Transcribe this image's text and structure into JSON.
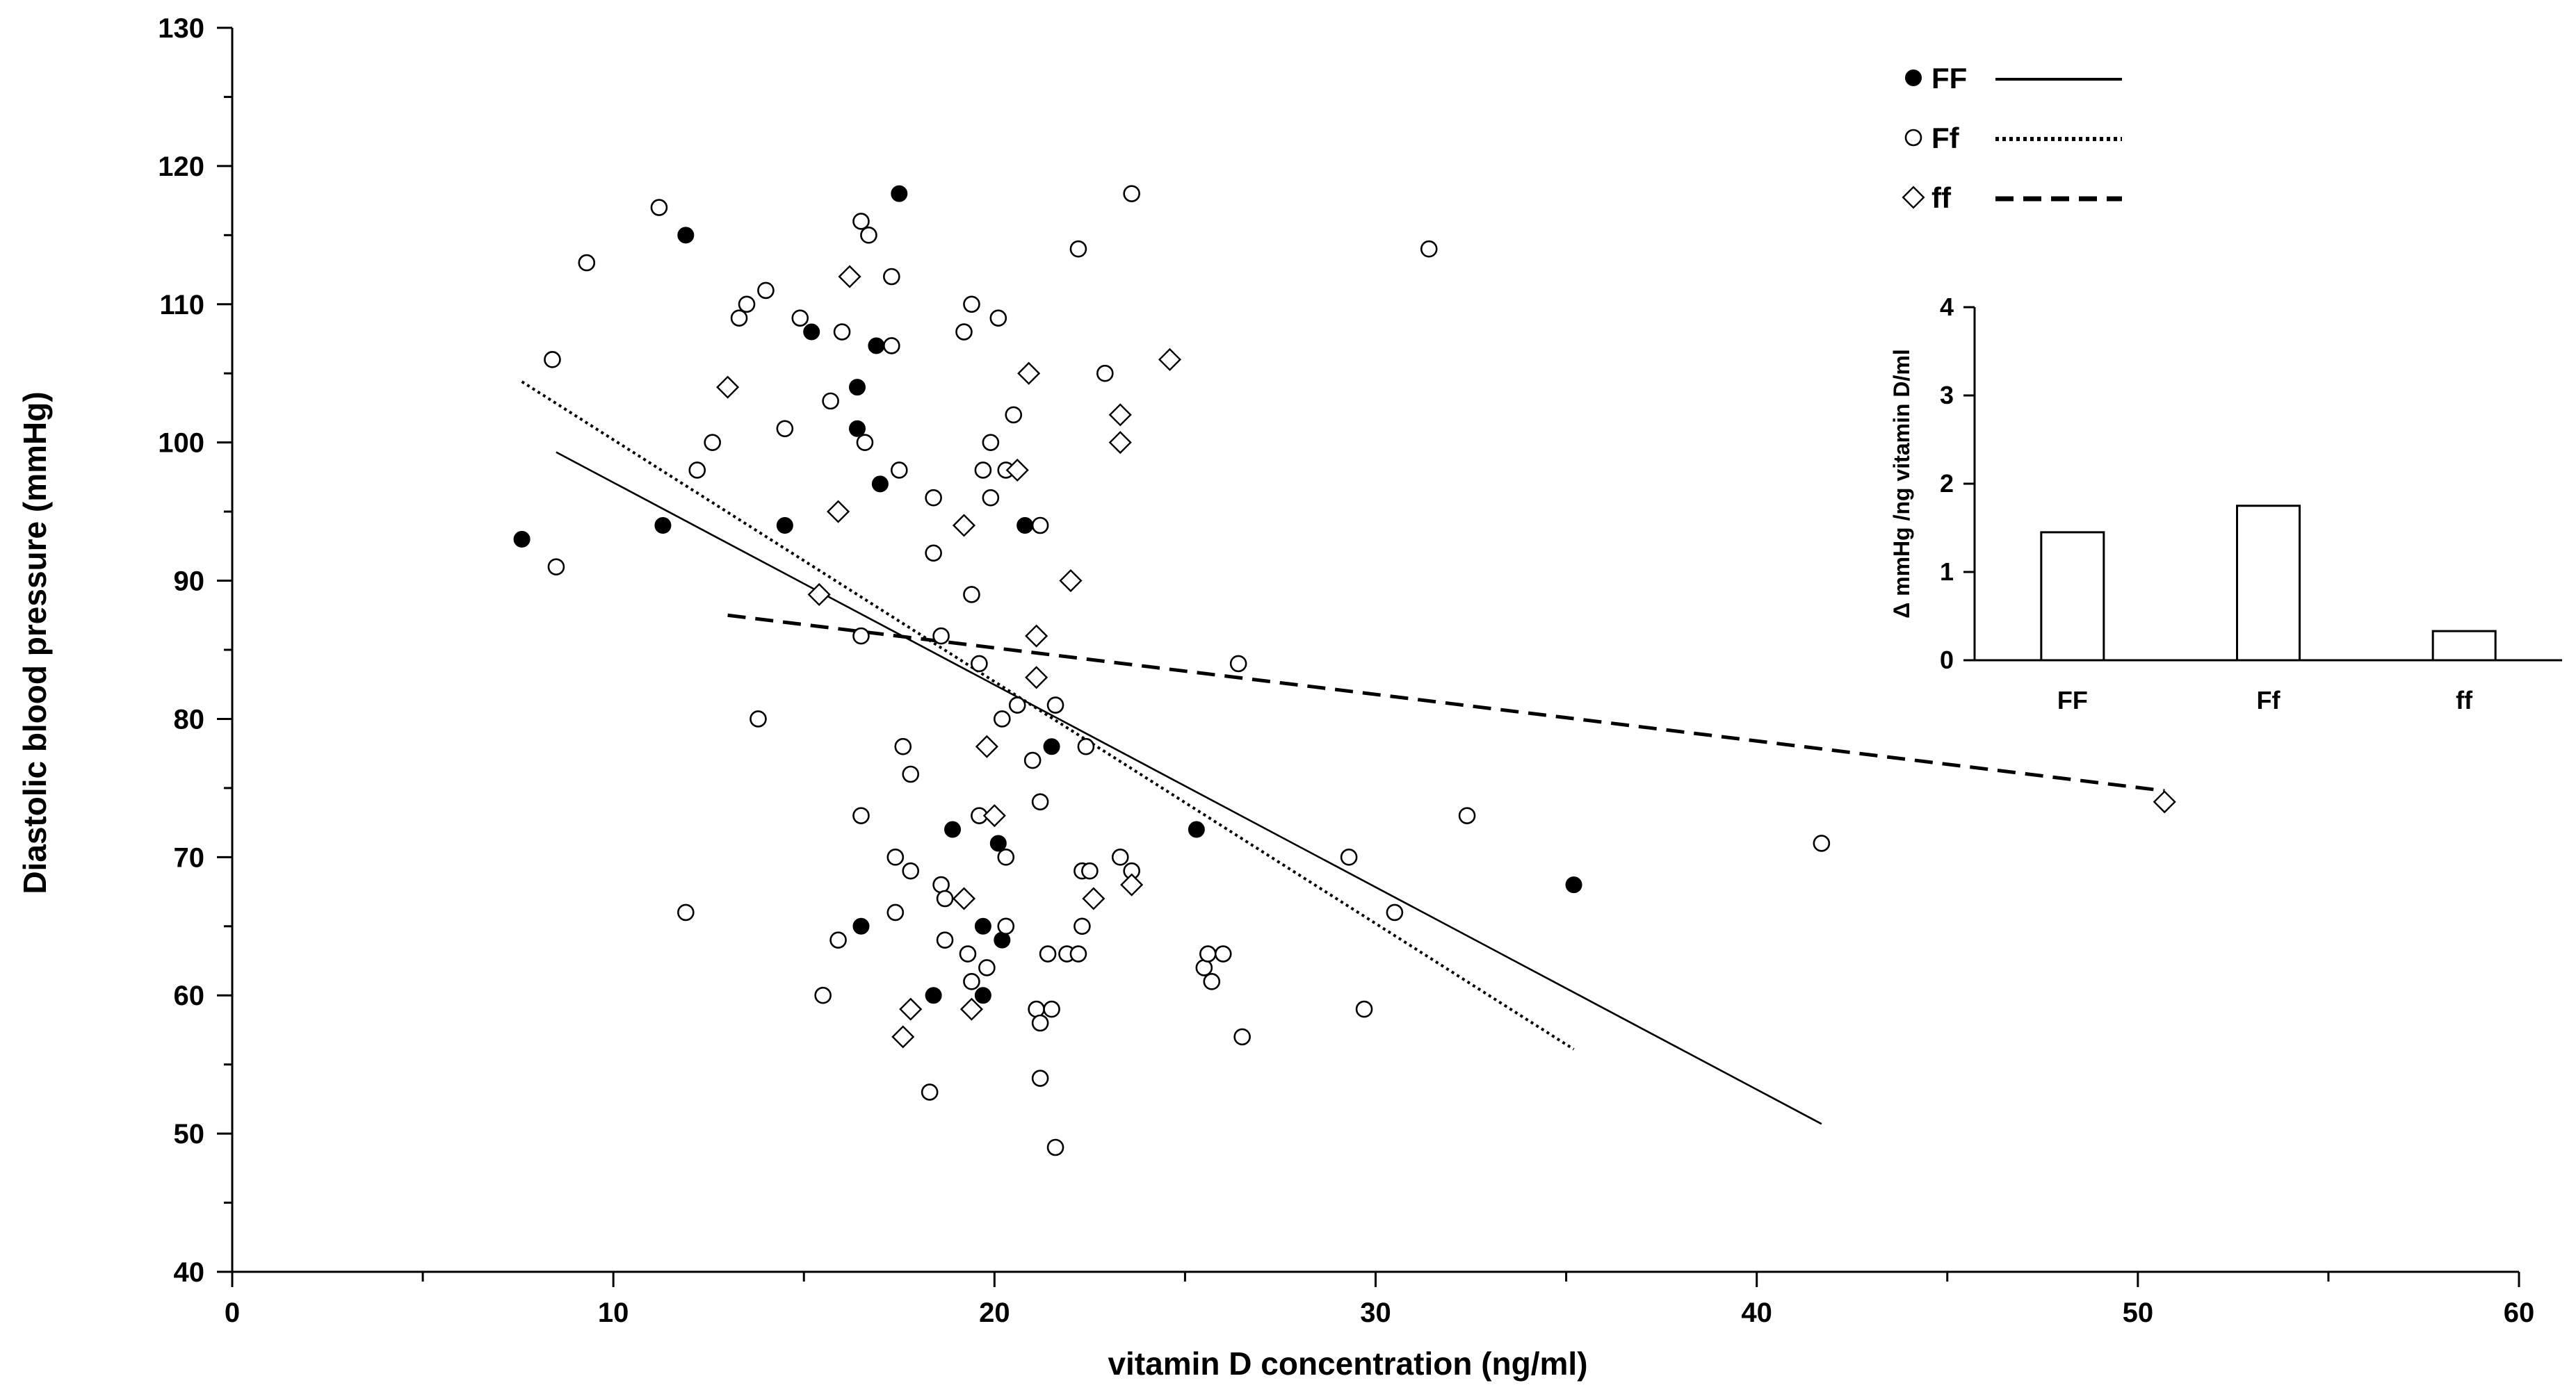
{
  "chart_data": [
    {
      "type": "scatter",
      "title": "",
      "xlabel": "vitamin D concentration  (ng/ml)",
      "ylabel": "Diastolic blood pressure (mmHg)",
      "xlim": [
        0,
        60
      ],
      "ylim": [
        40,
        130
      ],
      "xticks": [
        "0",
        "10",
        "20",
        "30",
        "40",
        "50",
        "60"
      ],
      "yticks": [
        "40",
        "50",
        "60",
        "70",
        "80",
        "90",
        "100",
        "110",
        "120",
        "130"
      ],
      "legend_position": "top-right",
      "series": [
        {
          "name": "FF",
          "marker": "filled-circle",
          "line_style": "solid",
          "points": [
            [
              7.6,
              93
            ],
            [
              11.3,
              94
            ],
            [
              11.9,
              115
            ],
            [
              14.5,
              94
            ],
            [
              15.2,
              108
            ],
            [
              16.4,
              104
            ],
            [
              16.4,
              101
            ],
            [
              16.9,
              107
            ],
            [
              17.0,
              97
            ],
            [
              17.5,
              118
            ],
            [
              16.5,
              65
            ],
            [
              18.4,
              60
            ],
            [
              18.9,
              72
            ],
            [
              19.7,
              65
            ],
            [
              19.7,
              60
            ],
            [
              20.1,
              71
            ],
            [
              20.2,
              64
            ],
            [
              20.8,
              94
            ],
            [
              21.5,
              78
            ],
            [
              25.3,
              72
            ],
            [
              35.2,
              68
            ]
          ],
          "trend": [
            [
              8.5,
              99.3
            ],
            [
              41.7,
              50.7
            ]
          ]
        },
        {
          "name": "Ff",
          "marker": "open-circle",
          "line_style": "dotted",
          "points": [
            [
              8.4,
              106
            ],
            [
              8.5,
              91
            ],
            [
              9.3,
              113
            ],
            [
              11.2,
              117
            ],
            [
              11.9,
              66
            ],
            [
              12.2,
              98
            ],
            [
              12.6,
              100
            ],
            [
              13.3,
              109
            ],
            [
              13.5,
              110
            ],
            [
              13.8,
              80
            ],
            [
              14.0,
              111
            ],
            [
              14.5,
              101
            ],
            [
              14.9,
              109
            ],
            [
              15.5,
              60
            ],
            [
              15.7,
              103
            ],
            [
              15.9,
              64
            ],
            [
              16.0,
              108
            ],
            [
              16.5,
              116
            ],
            [
              16.5,
              86
            ],
            [
              16.5,
              73
            ],
            [
              16.6,
              100
            ],
            [
              16.7,
              115
            ],
            [
              17.3,
              112
            ],
            [
              17.3,
              107
            ],
            [
              17.4,
              70
            ],
            [
              17.5,
              98
            ],
            [
              17.4,
              66
            ],
            [
              17.6,
              78
            ],
            [
              17.8,
              76
            ],
            [
              17.8,
              69
            ],
            [
              18.3,
              53
            ],
            [
              18.4,
              96
            ],
            [
              18.4,
              92
            ],
            [
              18.6,
              86
            ],
            [
              18.6,
              68
            ],
            [
              18.7,
              67
            ],
            [
              18.7,
              64
            ],
            [
              19.2,
              108
            ],
            [
              19.3,
              63
            ],
            [
              19.4,
              110
            ],
            [
              19.4,
              89
            ],
            [
              19.4,
              61
            ],
            [
              19.6,
              84
            ],
            [
              19.6,
              73
            ],
            [
              19.7,
              98
            ],
            [
              19.8,
              62
            ],
            [
              19.9,
              100
            ],
            [
              19.9,
              96
            ],
            [
              20.1,
              109
            ],
            [
              20.2,
              80
            ],
            [
              20.3,
              98
            ],
            [
              20.3,
              70
            ],
            [
              20.3,
              65
            ],
            [
              20.5,
              102
            ],
            [
              20.6,
              81
            ],
            [
              21.0,
              77
            ],
            [
              21.1,
              59
            ],
            [
              21.2,
              94
            ],
            [
              21.2,
              74
            ],
            [
              21.2,
              58
            ],
            [
              21.2,
              54
            ],
            [
              21.4,
              63
            ],
            [
              21.5,
              59
            ],
            [
              21.6,
              81
            ],
            [
              21.6,
              49
            ],
            [
              21.9,
              63
            ],
            [
              22.2,
              63
            ],
            [
              22.2,
              114
            ],
            [
              22.3,
              65
            ],
            [
              22.3,
              69
            ],
            [
              22.4,
              78
            ],
            [
              22.5,
              69
            ],
            [
              22.9,
              105
            ],
            [
              23.3,
              70
            ],
            [
              23.6,
              69
            ],
            [
              23.6,
              118
            ],
            [
              25.5,
              62
            ],
            [
              25.6,
              63
            ],
            [
              25.7,
              61
            ],
            [
              26.0,
              63
            ],
            [
              26.4,
              84
            ],
            [
              26.5,
              57
            ],
            [
              29.3,
              70
            ],
            [
              29.7,
              59
            ],
            [
              30.5,
              66
            ],
            [
              31.4,
              114
            ],
            [
              32.4,
              73
            ],
            [
              41.7,
              71
            ]
          ],
          "trend": [
            [
              7.6,
              104.4
            ],
            [
              35.2,
              56.1
            ]
          ]
        },
        {
          "name": "ff",
          "marker": "open-diamond",
          "line_style": "dashed",
          "points": [
            [
              13.0,
              104
            ],
            [
              15.4,
              89
            ],
            [
              15.9,
              95
            ],
            [
              16.2,
              112
            ],
            [
              17.6,
              57
            ],
            [
              17.8,
              59
            ],
            [
              19.2,
              94
            ],
            [
              19.2,
              67
            ],
            [
              19.4,
              59
            ],
            [
              19.8,
              78
            ],
            [
              20.0,
              73
            ],
            [
              20.6,
              98
            ],
            [
              20.9,
              105
            ],
            [
              21.1,
              86
            ],
            [
              21.1,
              83
            ],
            [
              22.0,
              90
            ],
            [
              22.6,
              67
            ],
            [
              23.3,
              102
            ],
            [
              23.3,
              100
            ],
            [
              23.6,
              68
            ],
            [
              24.6,
              106
            ],
            [
              50.7,
              74
            ]
          ],
          "trend": [
            [
              13.0,
              87.5
            ],
            [
              50.7,
              74.8
            ]
          ]
        }
      ]
    },
    {
      "type": "bar",
      "title": "",
      "xlabel": "",
      "ylabel": "Δ mmHg /ng vitamin D/ml",
      "ylim": [
        0,
        4
      ],
      "yticks": [
        "0",
        "1",
        "2",
        "3",
        "4"
      ],
      "categories": [
        "FF",
        "Ff",
        "ff"
      ],
      "values": [
        1.45,
        1.75,
        0.33
      ]
    }
  ]
}
